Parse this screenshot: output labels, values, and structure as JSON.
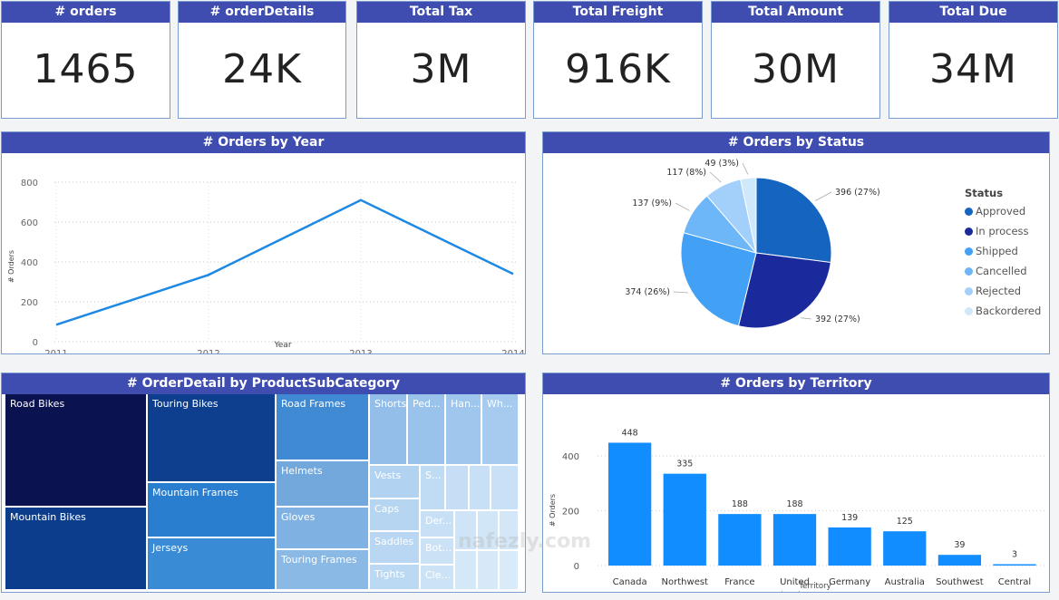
{
  "kpis": [
    {
      "label": "# orders",
      "value": "1465"
    },
    {
      "label": "# orderDetails",
      "value": "24K"
    },
    {
      "label": "Total Tax",
      "value": "3M"
    },
    {
      "label": "Total Freight",
      "value": "916K"
    },
    {
      "label": "Total Amount",
      "value": "30M"
    },
    {
      "label": "Total Due",
      "value": "34M"
    }
  ],
  "watermark": "nafezly.com",
  "chart_data": [
    {
      "type": "line",
      "title": "# Orders by Year",
      "xlabel": "Year",
      "ylabel": "# Orders",
      "x": [
        "2011",
        "2012",
        "2013",
        "2014"
      ],
      "values": [
        85,
        335,
        710,
        340
      ],
      "ylim": [
        0,
        800
      ],
      "yticks": [
        "0",
        "200",
        "400",
        "600",
        "800"
      ],
      "grid": true,
      "color": "#1e88e5"
    },
    {
      "type": "pie",
      "title": "# Orders by Status",
      "legend_title": "Status",
      "legend_position": "right",
      "slices": [
        {
          "name": "Approved",
          "value": 396,
          "label": "396 (27%)",
          "color": "#1565c0"
        },
        {
          "name": "In process",
          "value": 392,
          "label": "392 (27%)",
          "color": "#1a2a9c"
        },
        {
          "name": "Shipped",
          "value": 374,
          "label": "374 (26%)",
          "color": "#42a0f5"
        },
        {
          "name": "Cancelled",
          "value": 137,
          "label": "137 (9%)",
          "color": "#6db6f7"
        },
        {
          "name": "Rejected",
          "value": 117,
          "label": "117 (8%)",
          "color": "#a3d0fb"
        },
        {
          "name": "Backordered",
          "value": 49,
          "label": "49 (3%)",
          "color": "#cfe8fa"
        }
      ]
    },
    {
      "type": "treemap",
      "title": "# OrderDetail by ProductSubCategory",
      "labels": [
        "Road Bikes",
        "Mountain Bikes",
        "Touring Bikes",
        "Mountain Frames",
        "Jerseys",
        "Road Frames",
        "Helmets",
        "Gloves",
        "Touring Frames",
        "Shorts",
        "Ped...",
        "Han...",
        "Wh...",
        "Vests",
        "Caps",
        "Saddles",
        "Tights",
        "S...",
        "Der...",
        "Bot...",
        "Cle..."
      ]
    },
    {
      "type": "bar",
      "title": "# Orders by Territory",
      "xlabel": "Territory",
      "ylabel": "# Orders",
      "categories": [
        "Canada",
        "Northwest",
        "France",
        "United Kingdom",
        "Germany",
        "Australia",
        "Southwest",
        "Central"
      ],
      "values": [
        448,
        335,
        188,
        188,
        139,
        125,
        39,
        3
      ],
      "ylim": [
        0,
        500
      ],
      "yticks": [
        "0",
        "200",
        "400"
      ],
      "grid": true,
      "color": "#118dff"
    }
  ]
}
